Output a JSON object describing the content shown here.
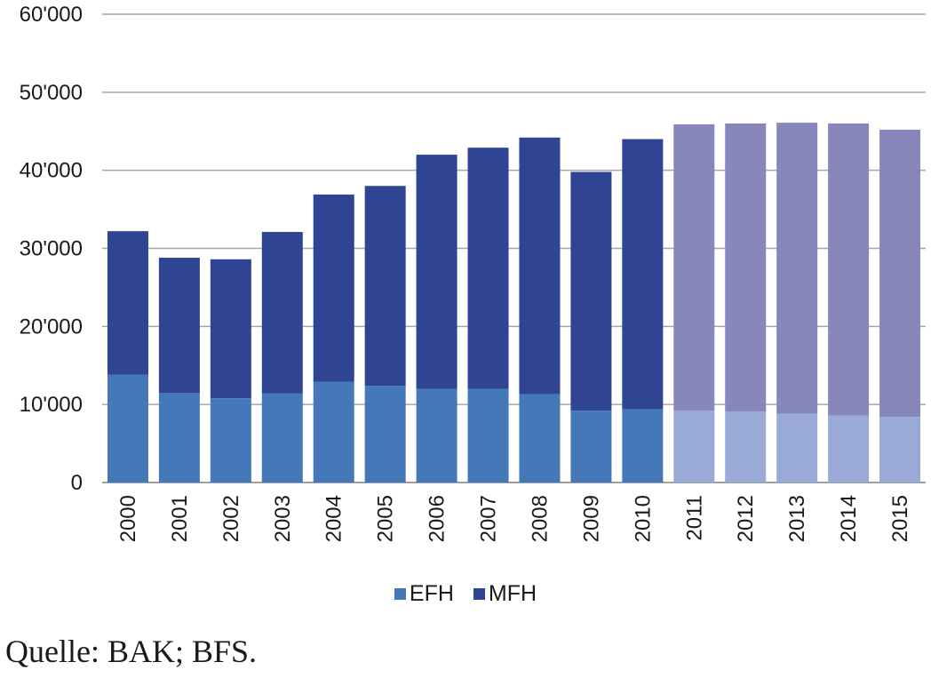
{
  "chart_data": {
    "type": "bar",
    "stacked": true,
    "categories": [
      "2000",
      "2001",
      "2002",
      "2003",
      "2004",
      "2005",
      "2006",
      "2007",
      "2008",
      "2009",
      "2010",
      "2011",
      "2012",
      "2013",
      "2014",
      "2015"
    ],
    "series": [
      {
        "name": "EFH",
        "values": [
          13800,
          11500,
          10800,
          11400,
          12900,
          12400,
          12000,
          12000,
          11300,
          9200,
          9400,
          9200,
          9100,
          8800,
          8600,
          8400
        ]
      },
      {
        "name": "MFH",
        "values": [
          18400,
          17300,
          17800,
          20700,
          24000,
          25600,
          30000,
          30900,
          32900,
          30600,
          34600,
          36700,
          36900,
          37300,
          37400,
          36800
        ]
      }
    ],
    "forecast_from_index": 11,
    "ylim": [
      0,
      60000
    ],
    "yticks": [
      0,
      10000,
      20000,
      30000,
      40000,
      50000,
      60000
    ],
    "ytick_labels": [
      "0",
      "10'000",
      "20'000",
      "30'000",
      "40'000",
      "50'000",
      "60'000"
    ],
    "grid": true,
    "legend_position": "bottom",
    "xlabel": "",
    "ylabel": ""
  },
  "colors": {
    "EFH": "#4478b8",
    "MFH": "#2f4492",
    "EFH_forecast": "#9aaad6",
    "MFH_forecast": "#8787bc",
    "grid": "#a6a6a6",
    "axis": "#7f7f7f"
  },
  "legend": {
    "efh_label": "EFH",
    "mfh_label": "MFH"
  },
  "source": "Quelle: BAK; BFS."
}
